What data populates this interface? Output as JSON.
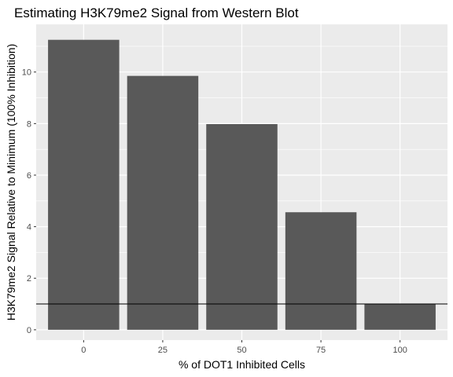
{
  "chart_data": {
    "type": "bar",
    "title": "Estimating H3K79me2 Signal from Western Blot",
    "xlabel": "% of DOT1 Inhibited Cells",
    "ylabel": "H3K79me2 Signal Relative to Minimum (100% Inhibition)",
    "categories": [
      "0",
      "25",
      "50",
      "75",
      "100"
    ],
    "values": [
      11.25,
      9.85,
      7.98,
      4.56,
      1.0
    ],
    "ylim": [
      -0.4,
      11.85
    ],
    "yticks": [
      0,
      2,
      4,
      6,
      8,
      10
    ],
    "reference_line": 1,
    "grid": true,
    "colors": {
      "bar": "#595959",
      "panel": "#ebebeb",
      "grid": "#ffffff",
      "reference_line": "#000000"
    }
  }
}
